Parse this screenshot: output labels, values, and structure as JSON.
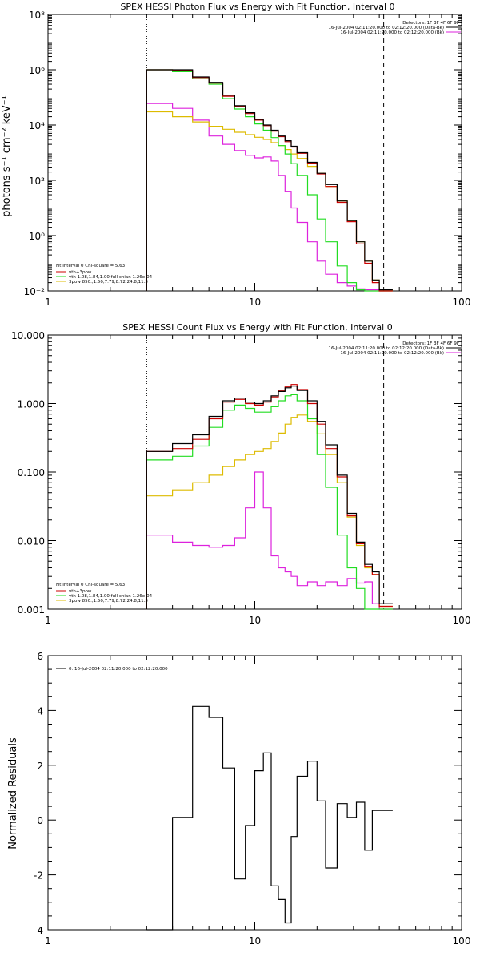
{
  "colors": {
    "background": "#ffffff",
    "axes": "#000000",
    "black": "#000000",
    "red": "#cc0000",
    "green": "#22dd22",
    "orange": "#ddbb00",
    "magenta": "#dd22dd"
  },
  "chart_data": [
    {
      "type": "line",
      "title": "SPEX HESSI Photon Flux vs Energy with Fit Function, Interval 0",
      "xlabel": "",
      "ylabel": "photons s⁻¹ cm⁻² keV⁻¹",
      "xscale": "log",
      "yscale": "log",
      "xlim": [
        1,
        100
      ],
      "ylim": [
        0.01,
        100000000
      ],
      "xtick_labels": [
        "1",
        "10",
        "100"
      ],
      "ytick_labels": [
        "10⁻²",
        "10⁰",
        "10²",
        "10⁴",
        "10⁶",
        "10⁸"
      ],
      "vlines": [
        {
          "x": 3.0,
          "style": "dotted"
        },
        {
          "x": 42.0,
          "style": "dashed"
        }
      ],
      "detector_text": [
        "Detectors: 1F 3F 4F 6F 9F",
        "16-Jul-2004 02:11:20.000 to 02:12:20.000 (Data-Bk)",
        "16-Jul-2004 02:11:20.000 to 02:12:20.000 (Bk)"
      ],
      "fit_text": {
        "header": "Fit Interval 0   Chi-square = 5.63",
        "labels": [
          "vth+3pow",
          "vth 1.08,1.84,1.00  full chian 1.26e-04",
          "3pow 850.,1.50,7.79,8.72,24.8,11.3"
        ]
      },
      "x": [
        3.0,
        4.0,
        5.0,
        6.0,
        7.0,
        8.0,
        9.0,
        10.0,
        11.0,
        12.0,
        13.0,
        14.0,
        15.0,
        16.0,
        18.0,
        20.0,
        22.0,
        25.0,
        28.0,
        31.0,
        34.0,
        37.0,
        40.0,
        43.0
      ],
      "series": [
        {
          "name": "",
          "style": "data",
          "color": "black",
          "values": [
            1000000,
            1000000,
            550000,
            350000,
            120000,
            50000,
            28000,
            16000,
            10000,
            6500,
            4000,
            2700,
            1700,
            1000,
            450,
            180,
            70,
            18,
            3.5,
            0.6,
            0.12,
            0.025,
            0.011,
            0.011
          ]
        },
        {
          "name": "",
          "style": "total",
          "color": "red",
          "values": [
            1000000,
            950000,
            520000,
            330000,
            110000,
            48000,
            26000,
            15000,
            9500,
            6000,
            3800,
            2500,
            1600,
            950,
            420,
            170,
            60,
            16,
            3.2,
            0.5,
            0.1,
            0.02,
            0.01,
            0.01
          ]
        },
        {
          "name": "",
          "style": "thermal",
          "color": "green",
          "values": [
            1000000,
            850000,
            470000,
            300000,
            90000,
            38000,
            20000,
            11000,
            6500,
            3500,
            1800,
            900,
            400,
            150,
            30,
            4,
            0.6,
            0.08,
            0.02,
            0.011,
            0.01,
            0.01,
            0.01,
            0.01
          ]
        },
        {
          "name": "",
          "style": "power law",
          "color": "orange",
          "values": [
            30000,
            20000,
            13000,
            9000,
            7000,
            5500,
            4500,
            3600,
            3000,
            2300,
            1800,
            1300,
            900,
            620,
            320,
            180,
            60,
            18,
            3.5,
            0.6,
            0.12,
            0.025,
            0.011,
            0.011
          ]
        },
        {
          "name": "",
          "style": "background",
          "color": "magenta",
          "values": [
            60000,
            40000,
            15000,
            4000,
            2000,
            1200,
            800,
            650,
            700,
            500,
            150,
            40,
            10,
            3,
            0.6,
            0.12,
            0.04,
            0.02,
            0.015,
            0.012,
            0.011,
            0.011,
            0.011,
            0.011
          ]
        }
      ]
    },
    {
      "type": "line",
      "title": "SPEX HESSI Count Flux vs Energy with Fit Function, Interval 0",
      "xlabel": "",
      "ylabel": "",
      "xscale": "log",
      "yscale": "log",
      "xlim": [
        1,
        100
      ],
      "ylim": [
        0.001,
        10
      ],
      "xtick_labels": [
        "1",
        "10",
        "100"
      ],
      "ytick_labels": [
        "0.001",
        "0.010",
        "0.100",
        "1.000",
        "10.000"
      ],
      "vlines": [
        {
          "x": 3.0,
          "style": "dotted"
        },
        {
          "x": 42.0,
          "style": "dashed"
        }
      ],
      "detector_text": [
        "Detectors: 1F 3F 4F 6F 9F",
        "16-Jul-2004 02:11:20.000 to 02:12:20.000 (Data-Bk)",
        "16-Jul-2004 02:11:20.000 to 02:12:20.000 (Bk)"
      ],
      "fit_text": {
        "header": "Fit Interval 0   Chi-square = 5.63",
        "labels": [
          "vth+3pow",
          "vth 1.08,1.84,1.00  full chian 1.26e-04",
          "3pow 850.,1.50,7.79,8.72,24.8,11.3"
        ]
      },
      "x": [
        3.0,
        4.0,
        5.0,
        6.0,
        7.0,
        8.0,
        9.0,
        10.0,
        11.0,
        12.0,
        13.0,
        14.0,
        15.0,
        16.0,
        18.0,
        20.0,
        22.0,
        25.0,
        28.0,
        31.0,
        34.0,
        37.0,
        40.0,
        43.0
      ],
      "series": [
        {
          "name": "",
          "style": "data",
          "color": "black",
          "values": [
            0.2,
            0.26,
            0.35,
            0.65,
            1.1,
            1.2,
            1.05,
            1.0,
            1.1,
            1.3,
            1.5,
            1.7,
            1.8,
            1.55,
            1.1,
            0.55,
            0.25,
            0.09,
            0.025,
            0.0095,
            0.0045,
            0.0035,
            0.0012,
            0.0012
          ]
        },
        {
          "name": "",
          "style": "total",
          "color": "red",
          "values": [
            0.2,
            0.22,
            0.3,
            0.6,
            1.05,
            1.15,
            1.0,
            0.95,
            1.05,
            1.25,
            1.55,
            1.75,
            1.9,
            1.6,
            1.0,
            0.5,
            0.22,
            0.085,
            0.023,
            0.009,
            0.0042,
            0.0032,
            0.0011,
            0.0011
          ]
        },
        {
          "name": "",
          "style": "thermal",
          "color": "green",
          "values": [
            0.15,
            0.17,
            0.24,
            0.45,
            0.8,
            0.95,
            0.85,
            0.75,
            0.75,
            0.9,
            1.1,
            1.3,
            1.35,
            1.1,
            0.6,
            0.18,
            0.06,
            0.012,
            0.004,
            0.002,
            0.001,
            0.001,
            0.001,
            0.001
          ]
        },
        {
          "name": "",
          "style": "power law",
          "color": "orange",
          "values": [
            0.045,
            0.055,
            0.07,
            0.09,
            0.12,
            0.15,
            0.18,
            0.2,
            0.22,
            0.28,
            0.37,
            0.5,
            0.63,
            0.68,
            0.55,
            0.36,
            0.18,
            0.07,
            0.022,
            0.0085,
            0.004,
            0.0032,
            0.0011,
            0.0011
          ]
        },
        {
          "name": "",
          "style": "background",
          "color": "magenta",
          "values": [
            0.012,
            0.0095,
            0.0085,
            0.008,
            0.0085,
            0.011,
            0.03,
            0.1,
            0.03,
            0.006,
            0.004,
            0.0035,
            0.003,
            0.0022,
            0.0025,
            0.0022,
            0.0025,
            0.0022,
            0.0028,
            0.0024,
            0.0025,
            0.0012,
            0.001,
            0.001
          ]
        }
      ]
    },
    {
      "type": "line",
      "title": "",
      "xlabel": "",
      "ylabel": "Normalized Residuals",
      "xscale": "log",
      "yscale": "linear",
      "xlim": [
        1,
        100
      ],
      "ylim": [
        -4,
        6
      ],
      "xtick_labels": [
        "1",
        "10",
        "100"
      ],
      "ytick_labels": [
        "-4",
        "-2",
        "0",
        "2",
        "4",
        "6"
      ],
      "legend_text": "0. 16-Jul-2004 02:11:20.000 to 02:12:20.000",
      "x": [
        3.0,
        4.0,
        5.0,
        6.0,
        7.0,
        8.0,
        9.0,
        10.0,
        11.0,
        12.0,
        13.0,
        14.0,
        15.0,
        16.0,
        18.0,
        20.0,
        22.0,
        25.0,
        28.0,
        31.0,
        34.0,
        37.0,
        40.0,
        43.0
      ],
      "series": [
        {
          "name": "",
          "color": "black",
          "values": [
            -4.2,
            0.1,
            4.15,
            3.75,
            1.9,
            -2.15,
            -0.2,
            1.8,
            2.45,
            -2.4,
            -2.9,
            -3.75,
            -0.6,
            1.6,
            2.15,
            0.7,
            -1.75,
            0.6,
            0.1,
            0.65,
            -1.1,
            0.35,
            0.35,
            0.35
          ]
        }
      ]
    }
  ]
}
